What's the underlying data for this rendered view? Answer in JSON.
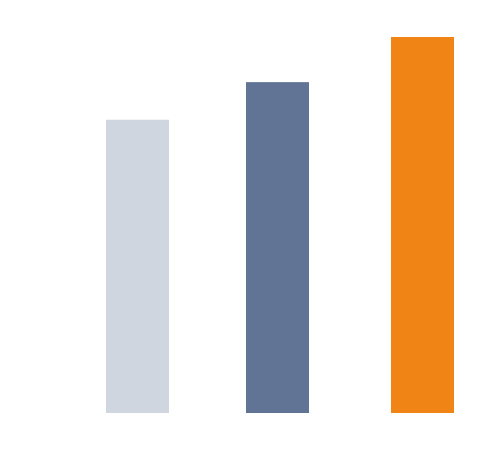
{
  "chart_data": {
    "type": "bar",
    "categories": [
      null,
      null,
      null
    ],
    "values": [
      78,
      88,
      100
    ],
    "colors": [
      "#d0d6e0",
      "#617496",
      "#f08515"
    ],
    "ylim": [
      0,
      100
    ]
  }
}
